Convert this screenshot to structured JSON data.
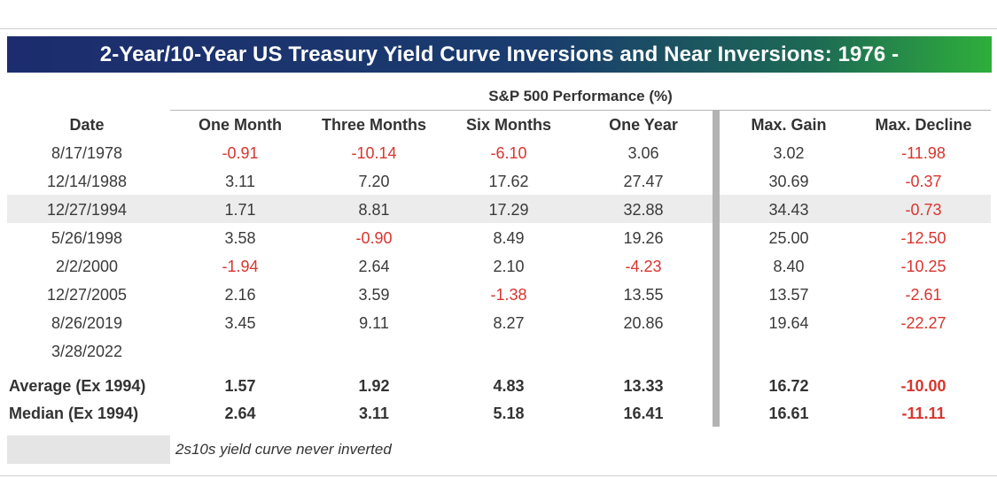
{
  "title": "2-Year/10-Year US Treasury Yield Curve Inversions and Near Inversions: 1976 -",
  "group_header": "S&P 500 Performance (%)",
  "columns": [
    "Date",
    "One Month",
    "Three Months",
    "Six Months",
    "One Year",
    "Max. Gain",
    "Max. Decline"
  ],
  "rows": [
    {
      "date": "8/17/1978",
      "one_month": "-0.91",
      "three_months": "-10.14",
      "six_months": "-6.10",
      "one_year": "3.06",
      "max_gain": "3.02",
      "max_decline": "-11.98"
    },
    {
      "date": "12/14/1988",
      "one_month": "3.11",
      "three_months": "7.20",
      "six_months": "17.62",
      "one_year": "27.47",
      "max_gain": "30.69",
      "max_decline": "-0.37"
    },
    {
      "date": "12/27/1994",
      "one_month": "1.71",
      "three_months": "8.81",
      "six_months": "17.29",
      "one_year": "32.88",
      "max_gain": "34.43",
      "max_decline": "-0.73"
    },
    {
      "date": "5/26/1998",
      "one_month": "3.58",
      "three_months": "-0.90",
      "six_months": "8.49",
      "one_year": "19.26",
      "max_gain": "25.00",
      "max_decline": "-12.50"
    },
    {
      "date": "2/2/2000",
      "one_month": "-1.94",
      "three_months": "2.64",
      "six_months": "2.10",
      "one_year": "-4.23",
      "max_gain": "8.40",
      "max_decline": "-10.25"
    },
    {
      "date": "12/27/2005",
      "one_month": "2.16",
      "three_months": "3.59",
      "six_months": "-1.38",
      "one_year": "13.55",
      "max_gain": "13.57",
      "max_decline": "-2.61"
    },
    {
      "date": "8/26/2019",
      "one_month": "3.45",
      "three_months": "9.11",
      "six_months": "8.27",
      "one_year": "20.86",
      "max_gain": "19.64",
      "max_decline": "-22.27"
    },
    {
      "date": "3/28/2022",
      "one_month": "",
      "three_months": "",
      "six_months": "",
      "one_year": "",
      "max_gain": "",
      "max_decline": ""
    }
  ],
  "summary": [
    {
      "label": "Average (Ex 1994)",
      "one_month": "1.57",
      "three_months": "1.92",
      "six_months": "4.83",
      "one_year": "13.33",
      "max_gain": "16.72",
      "max_decline": "-10.00"
    },
    {
      "label": "Median (Ex 1994)",
      "one_month": "2.64",
      "three_months": "3.11",
      "six_months": "5.18",
      "one_year": "16.41",
      "max_gain": "16.61",
      "max_decline": "-11.11"
    }
  ],
  "legend": "2s10s yield curve never inverted",
  "colors": {
    "negative": "#d9352f",
    "shaded_row": "#ececec",
    "legend_swatch": "#e5e5e5",
    "title_start": "#1c2c6e",
    "title_end": "#2fae3c"
  }
}
